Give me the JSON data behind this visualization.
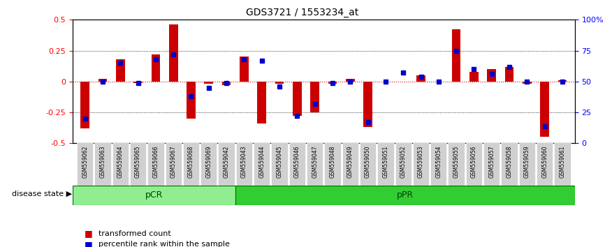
{
  "title": "GDS3721 / 1553234_at",
  "samples": [
    "GSM559062",
    "GSM559063",
    "GSM559064",
    "GSM559065",
    "GSM559066",
    "GSM559067",
    "GSM559068",
    "GSM559069",
    "GSM559042",
    "GSM559043",
    "GSM559044",
    "GSM559045",
    "GSM559046",
    "GSM559047",
    "GSM559048",
    "GSM559049",
    "GSM559050",
    "GSM559051",
    "GSM559052",
    "GSM559053",
    "GSM559054",
    "GSM559055",
    "GSM559056",
    "GSM559057",
    "GSM559058",
    "GSM559059",
    "GSM559060",
    "GSM559061"
  ],
  "red_bars": [
    -0.38,
    0.02,
    0.18,
    -0.01,
    0.22,
    0.46,
    -0.3,
    -0.02,
    -0.03,
    0.2,
    -0.34,
    -0.02,
    -0.28,
    -0.25,
    -0.02,
    0.02,
    -0.37,
    0.0,
    0.0,
    0.05,
    0.0,
    0.42,
    0.08,
    0.1,
    0.12,
    -0.02,
    -0.45,
    0.01
  ],
  "blue_markers": [
    20,
    50,
    65,
    49,
    68,
    72,
    38,
    45,
    49,
    68,
    67,
    46,
    22,
    32,
    49,
    50,
    17,
    50,
    57,
    54,
    50,
    75,
    60,
    56,
    62,
    50,
    14,
    50
  ],
  "pcr_count": 9,
  "ylim": [
    -0.5,
    0.5
  ],
  "yticks_left": [
    -0.5,
    -0.25,
    0,
    0.25,
    0.5
  ],
  "yticks_right": [
    0,
    25,
    50,
    75,
    100
  ],
  "ytick_right_labels": [
    "0",
    "25",
    "50",
    "75",
    "100%"
  ],
  "bar_color": "#cc0000",
  "marker_color": "#0000cc",
  "pCR_color": "#90EE90",
  "pPR_color": "#32CD32",
  "background_color": "#ffffff",
  "grid_color": "#000000",
  "zero_line_color": "#cc0000",
  "legend_bar_label": "transformed count",
  "legend_marker_label": "percentile rank within the sample",
  "pCR_label": "pCR",
  "pPR_label": "pPR",
  "disease_state_label": "disease state"
}
